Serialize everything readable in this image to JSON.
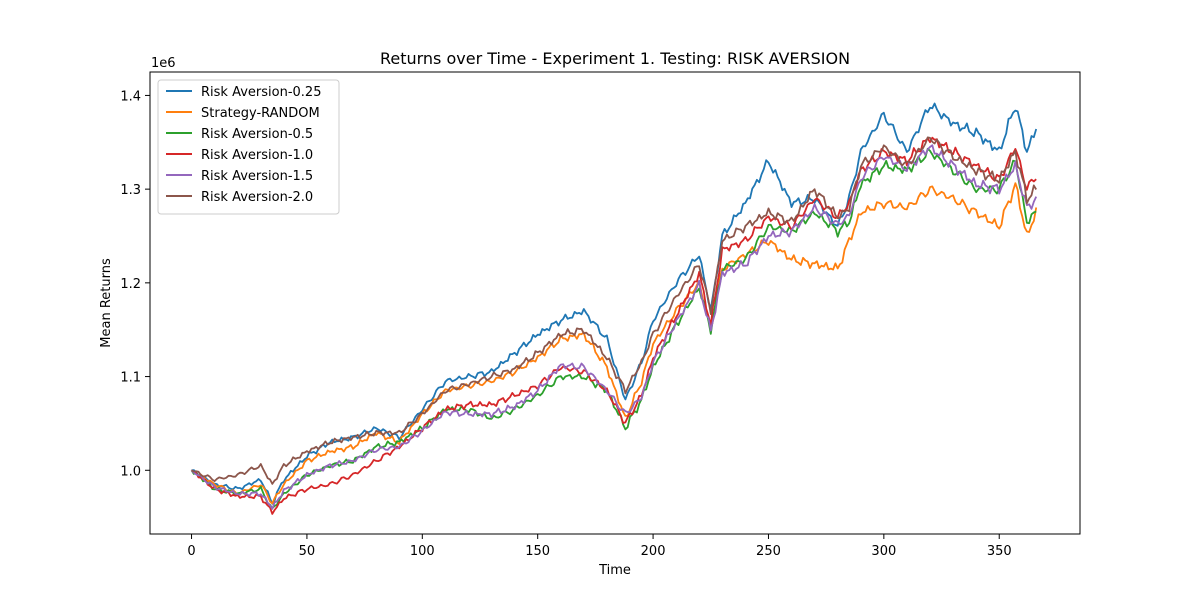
{
  "chart_data": {
    "type": "line",
    "title": "Returns over Time - Experiment 1. Testing: RISK AVERSION",
    "xlabel": "Time",
    "ylabel": "Mean Returns",
    "y_offset_label": "1e6",
    "xlim": [
      -18,
      385
    ],
    "ylim": [
      932000,
      1425000
    ],
    "x_ticks": [
      0,
      50,
      100,
      150,
      200,
      250,
      300,
      350
    ],
    "y_ticks": [
      1000000,
      1100000,
      1200000,
      1300000,
      1400000
    ],
    "y_tick_labels": [
      "1.0",
      "1.1",
      "1.2",
      "1.3",
      "1.4"
    ],
    "legend_position": "upper-left",
    "grid": false,
    "x": [
      0,
      10,
      20,
      30,
      35,
      40,
      50,
      60,
      70,
      80,
      90,
      100,
      110,
      120,
      130,
      140,
      150,
      160,
      170,
      180,
      188,
      195,
      200,
      210,
      220,
      225,
      230,
      240,
      250,
      260,
      270,
      280,
      285,
      290,
      300,
      310,
      320,
      330,
      340,
      350,
      357,
      362,
      366
    ],
    "series": [
      {
        "name": "Risk Aversion-0.25",
        "color": "#1f77b4",
        "values": [
          1000000,
          985000,
          980000,
          990000,
          965000,
          990000,
          1015000,
          1030000,
          1035000,
          1045000,
          1035000,
          1065000,
          1095000,
          1100000,
          1105000,
          1125000,
          1145000,
          1160000,
          1170000,
          1140000,
          1075000,
          1115000,
          1160000,
          1200000,
          1230000,
          1170000,
          1250000,
          1285000,
          1330000,
          1285000,
          1290000,
          1260000,
          1290000,
          1340000,
          1380000,
          1340000,
          1390000,
          1370000,
          1360000,
          1340000,
          1390000,
          1340000,
          1365000
        ]
      },
      {
        "name": "Strategy-RANDOM",
        "color": "#ff7f0e",
        "values": [
          1000000,
          985000,
          975000,
          985000,
          965000,
          985000,
          1010000,
          1020000,
          1025000,
          1040000,
          1030000,
          1060000,
          1085000,
          1090000,
          1095000,
          1105000,
          1120000,
          1140000,
          1145000,
          1110000,
          1055000,
          1095000,
          1135000,
          1170000,
          1200000,
          1150000,
          1215000,
          1230000,
          1245000,
          1225000,
          1220000,
          1215000,
          1245000,
          1275000,
          1285000,
          1280000,
          1300000,
          1290000,
          1275000,
          1260000,
          1305000,
          1250000,
          1275000
        ]
      },
      {
        "name": "Risk Aversion-0.5",
        "color": "#2ca02c",
        "values": [
          1000000,
          980000,
          975000,
          980000,
          958000,
          975000,
          995000,
          1005000,
          1010000,
          1025000,
          1030000,
          1045000,
          1065000,
          1065000,
          1055000,
          1065000,
          1080000,
          1100000,
          1100000,
          1085000,
          1045000,
          1075000,
          1110000,
          1155000,
          1195000,
          1150000,
          1215000,
          1225000,
          1260000,
          1255000,
          1275000,
          1255000,
          1265000,
          1305000,
          1325000,
          1320000,
          1340000,
          1320000,
          1300000,
          1300000,
          1330000,
          1265000,
          1275000
        ]
      },
      {
        "name": "Risk Aversion-1.0",
        "color": "#d62728",
        "values": [
          1000000,
          980000,
          972000,
          972000,
          955000,
          970000,
          980000,
          985000,
          995000,
          1010000,
          1025000,
          1045000,
          1065000,
          1070000,
          1070000,
          1080000,
          1090000,
          1110000,
          1105000,
          1085000,
          1050000,
          1080000,
          1120000,
          1165000,
          1210000,
          1155000,
          1235000,
          1245000,
          1270000,
          1260000,
          1290000,
          1270000,
          1285000,
          1320000,
          1340000,
          1330000,
          1355000,
          1340000,
          1325000,
          1310000,
          1345000,
          1300000,
          1315000
        ]
      },
      {
        "name": "Risk Aversion-1.5",
        "color": "#9467bd",
        "values": [
          1000000,
          982000,
          975000,
          975000,
          960000,
          978000,
          995000,
          1005000,
          1010000,
          1022000,
          1025000,
          1042000,
          1062000,
          1060000,
          1060000,
          1068000,
          1085000,
          1112000,
          1110000,
          1085000,
          1060000,
          1078000,
          1115000,
          1158000,
          1198000,
          1148000,
          1210000,
          1220000,
          1250000,
          1255000,
          1280000,
          1262000,
          1272000,
          1312000,
          1335000,
          1322000,
          1345000,
          1325000,
          1305000,
          1300000,
          1325000,
          1280000,
          1290000
        ]
      },
      {
        "name": "Risk Aversion-2.0",
        "color": "#8c564b",
        "values": [
          1000000,
          990000,
          995000,
          1005000,
          985000,
          1005000,
          1020000,
          1030000,
          1035000,
          1040000,
          1040000,
          1060000,
          1085000,
          1092000,
          1100000,
          1108000,
          1125000,
          1145000,
          1150000,
          1120000,
          1085000,
          1115000,
          1145000,
          1185000,
          1220000,
          1170000,
          1245000,
          1260000,
          1275000,
          1265000,
          1300000,
          1270000,
          1280000,
          1325000,
          1345000,
          1325000,
          1355000,
          1335000,
          1320000,
          1310000,
          1340000,
          1290000,
          1300000
        ]
      }
    ]
  }
}
